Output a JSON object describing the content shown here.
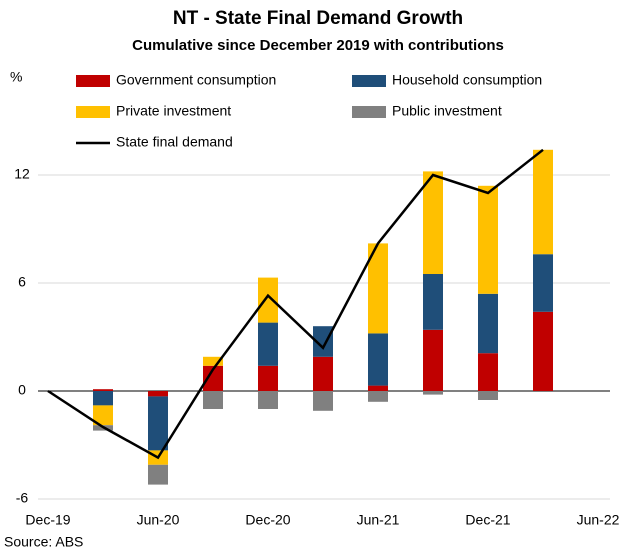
{
  "chart_data": {
    "type": "bar",
    "title": "NT - State Final Demand Growth",
    "subtitle": "Cumulative since December 2019 with contributions",
    "y_label": "%",
    "source": "Source: ABS",
    "categories": [
      "Dec-19",
      null,
      "Jun-20",
      null,
      "Dec-20",
      null,
      "Jun-21",
      null,
      "Dec-21",
      null,
      "Jun-22"
    ],
    "series": [
      {
        "name": "Government consumption",
        "type": "bar",
        "color": "#c00000",
        "values": [
          0,
          0.1,
          -0.3,
          1.4,
          1.4,
          1.9,
          0.3,
          3.4,
          2.1,
          4.4,
          null
        ]
      },
      {
        "name": "Household consumption",
        "type": "bar",
        "color": "#1f4e79",
        "values": [
          0,
          -0.8,
          -3.0,
          0,
          2.4,
          1.7,
          2.9,
          3.1,
          3.3,
          3.2,
          null
        ]
      },
      {
        "name": "Private investment",
        "type": "bar",
        "color": "#ffc000",
        "values": [
          0,
          -1.1,
          -0.8,
          0.5,
          2.5,
          0,
          5.0,
          5.7,
          6.0,
          5.8,
          null
        ]
      },
      {
        "name": "Public investment",
        "type": "bar",
        "color": "#808080",
        "values": [
          0,
          -0.3,
          -1.1,
          -1.0,
          -1.0,
          -1.1,
          -0.6,
          -0.2,
          -0.5,
          0,
          null
        ]
      },
      {
        "name": "State final demand",
        "type": "line",
        "color": "#000000",
        "values": [
          0,
          -2.0,
          -3.7,
          1.2,
          5.3,
          2.4,
          8.2,
          12.0,
          11.0,
          13.4,
          null
        ]
      }
    ],
    "ylim": [
      -6,
      18
    ],
    "yticks": [
      -6,
      0,
      6,
      12
    ],
    "grid": true,
    "legend": "top-left"
  }
}
